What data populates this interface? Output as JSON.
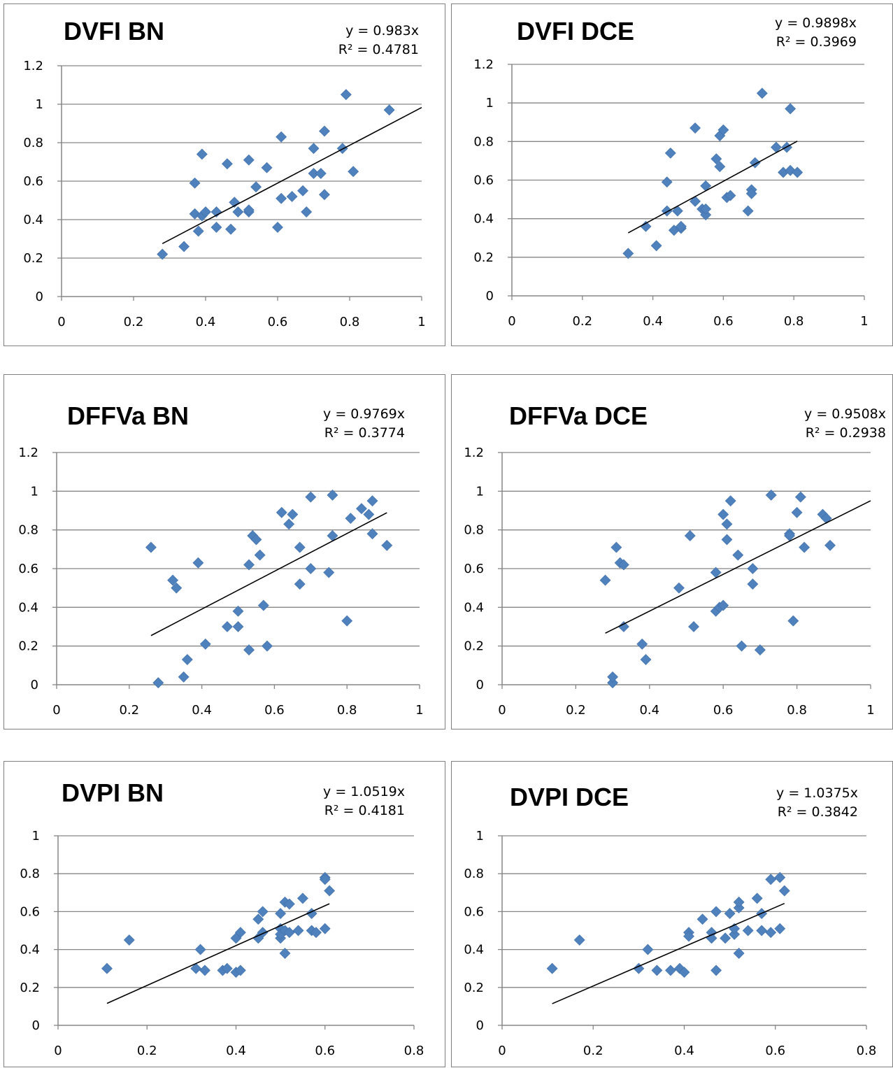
{
  "chart_data": [
    {
      "type": "scatter",
      "title": "DVFI BN",
      "trendline": {
        "equation": "y = 0.983x",
        "r2": "R² = 0.4781",
        "slope": 0.983,
        "x_range": [
          0.28,
          1.0
        ]
      },
      "xlim": [
        0,
        1
      ],
      "ylim": [
        0,
        1.2
      ],
      "xticks": [
        "0",
        "0.2",
        "0.4",
        "0.6",
        "0.8",
        "1"
      ],
      "yticks": [
        "0",
        "0.2",
        "0.4",
        "0.6",
        "0.8",
        "1",
        "1.2"
      ],
      "xtick_values": [
        0,
        0.2,
        0.4,
        0.6,
        0.8,
        1
      ],
      "ytick_values": [
        0,
        0.2,
        0.4,
        0.6,
        0.8,
        1,
        1.2
      ],
      "grid": "horizontal",
      "marker_color": "#4F81BD",
      "points": [
        [
          0.28,
          0.22
        ],
        [
          0.34,
          0.26
        ],
        [
          0.37,
          0.43
        ],
        [
          0.37,
          0.59
        ],
        [
          0.38,
          0.34
        ],
        [
          0.39,
          0.42
        ],
        [
          0.39,
          0.74
        ],
        [
          0.4,
          0.44
        ],
        [
          0.43,
          0.36
        ],
        [
          0.43,
          0.44
        ],
        [
          0.46,
          0.69
        ],
        [
          0.47,
          0.35
        ],
        [
          0.48,
          0.49
        ],
        [
          0.49,
          0.44
        ],
        [
          0.52,
          0.71
        ],
        [
          0.52,
          0.44
        ],
        [
          0.52,
          0.45
        ],
        [
          0.54,
          0.57
        ],
        [
          0.57,
          0.67
        ],
        [
          0.6,
          0.36
        ],
        [
          0.61,
          0.51
        ],
        [
          0.61,
          0.83
        ],
        [
          0.64,
          0.52
        ],
        [
          0.67,
          0.55
        ],
        [
          0.68,
          0.44
        ],
        [
          0.7,
          0.77
        ],
        [
          0.7,
          0.64
        ],
        [
          0.72,
          0.64
        ],
        [
          0.73,
          0.53
        ],
        [
          0.73,
          0.86
        ],
        [
          0.78,
          0.77
        ],
        [
          0.79,
          1.05
        ],
        [
          0.81,
          0.65
        ],
        [
          0.91,
          0.97
        ]
      ]
    },
    {
      "type": "scatter",
      "title": "DVFI DCE",
      "trendline": {
        "equation": "y = 0.9898x",
        "r2": "R² = 0.3969",
        "slope": 0.9898,
        "x_range": [
          0.33,
          0.81
        ]
      },
      "xlim": [
        0,
        1
      ],
      "ylim": [
        0,
        1.2
      ],
      "xticks": [
        "0",
        "0.2",
        "0.4",
        "0.6",
        "0.8",
        "1"
      ],
      "yticks": [
        "0",
        "0.2",
        "0.4",
        "0.6",
        "0.8",
        "1",
        "1.2"
      ],
      "xtick_values": [
        0,
        0.2,
        0.4,
        0.6,
        0.8,
        1
      ],
      "ytick_values": [
        0,
        0.2,
        0.4,
        0.6,
        0.8,
        1,
        1.2
      ],
      "grid": "horizontal",
      "marker_color": "#4F81BD",
      "points": [
        [
          0.33,
          0.22
        ],
        [
          0.38,
          0.36
        ],
        [
          0.41,
          0.26
        ],
        [
          0.44,
          0.59
        ],
        [
          0.44,
          0.44
        ],
        [
          0.45,
          0.74
        ],
        [
          0.46,
          0.34
        ],
        [
          0.47,
          0.44
        ],
        [
          0.48,
          0.35
        ],
        [
          0.48,
          0.36
        ],
        [
          0.52,
          0.49
        ],
        [
          0.52,
          0.87
        ],
        [
          0.54,
          0.45
        ],
        [
          0.55,
          0.42
        ],
        [
          0.55,
          0.57
        ],
        [
          0.55,
          0.45
        ],
        [
          0.58,
          0.71
        ],
        [
          0.59,
          0.67
        ],
        [
          0.59,
          0.83
        ],
        [
          0.6,
          0.86
        ],
        [
          0.61,
          0.51
        ],
        [
          0.62,
          0.52
        ],
        [
          0.67,
          0.44
        ],
        [
          0.68,
          0.55
        ],
        [
          0.68,
          0.53
        ],
        [
          0.69,
          0.69
        ],
        [
          0.71,
          1.05
        ],
        [
          0.75,
          0.77
        ],
        [
          0.77,
          0.64
        ],
        [
          0.78,
          0.77
        ],
        [
          0.79,
          0.65
        ],
        [
          0.79,
          0.97
        ],
        [
          0.81,
          0.64
        ]
      ]
    },
    {
      "type": "scatter",
      "title": "DFFVa BN",
      "trendline": {
        "equation": "y = 0.9769x",
        "r2": "R² = 0.3774",
        "slope": 0.9769,
        "x_range": [
          0.26,
          0.91
        ]
      },
      "xlim": [
        0,
        1
      ],
      "ylim": [
        0,
        1.2
      ],
      "xticks": [
        "0",
        "0.2",
        "0.4",
        "0.6",
        "0.8",
        "1"
      ],
      "yticks": [
        "0",
        "0.2",
        "0.4",
        "0.6",
        "0.8",
        "1",
        "1.2"
      ],
      "xtick_values": [
        0,
        0.2,
        0.4,
        0.6,
        0.8,
        1
      ],
      "ytick_values": [
        0,
        0.2,
        0.4,
        0.6,
        0.8,
        1,
        1.2
      ],
      "grid": "horizontal",
      "marker_color": "#4F81BD",
      "points": [
        [
          0.26,
          0.71
        ],
        [
          0.28,
          0.01
        ],
        [
          0.32,
          0.54
        ],
        [
          0.33,
          0.5
        ],
        [
          0.35,
          0.04
        ],
        [
          0.36,
          0.13
        ],
        [
          0.39,
          0.63
        ],
        [
          0.41,
          0.21
        ],
        [
          0.47,
          0.3
        ],
        [
          0.5,
          0.3
        ],
        [
          0.5,
          0.38
        ],
        [
          0.53,
          0.62
        ],
        [
          0.53,
          0.18
        ],
        [
          0.54,
          0.77
        ],
        [
          0.55,
          0.75
        ],
        [
          0.56,
          0.67
        ],
        [
          0.57,
          0.41
        ],
        [
          0.58,
          0.2
        ],
        [
          0.62,
          0.89
        ],
        [
          0.64,
          0.83
        ],
        [
          0.65,
          0.88
        ],
        [
          0.67,
          0.71
        ],
        [
          0.67,
          0.52
        ],
        [
          0.7,
          0.97
        ],
        [
          0.7,
          0.6
        ],
        [
          0.75,
          0.58
        ],
        [
          0.76,
          0.98
        ],
        [
          0.76,
          0.77
        ],
        [
          0.8,
          0.33
        ],
        [
          0.81,
          0.86
        ],
        [
          0.84,
          0.91
        ],
        [
          0.86,
          0.88
        ],
        [
          0.87,
          0.78
        ],
        [
          0.87,
          0.95
        ],
        [
          0.91,
          0.72
        ]
      ]
    },
    {
      "type": "scatter",
      "title": "DFFVa DCE",
      "trendline": {
        "equation": "y = 0.9508x",
        "r2": "R² = 0.2938",
        "slope": 0.9508,
        "x_range": [
          0.28,
          1.0
        ]
      },
      "xlim": [
        0,
        1
      ],
      "ylim": [
        0,
        1.2
      ],
      "xticks": [
        "0",
        "0.2",
        "0.4",
        "0.6",
        "0.8",
        "1"
      ],
      "yticks": [
        "0",
        "0.2",
        "0.4",
        "0.6",
        "0.8",
        "1",
        "1.2"
      ],
      "xtick_values": [
        0,
        0.2,
        0.4,
        0.6,
        0.8,
        1
      ],
      "ytick_values": [
        0,
        0.2,
        0.4,
        0.6,
        0.8,
        1,
        1.2
      ],
      "grid": "horizontal",
      "marker_color": "#4F81BD",
      "points": [
        [
          0.28,
          0.54
        ],
        [
          0.3,
          0.01
        ],
        [
          0.3,
          0.04
        ],
        [
          0.31,
          0.71
        ],
        [
          0.32,
          0.63
        ],
        [
          0.33,
          0.62
        ],
        [
          0.33,
          0.3
        ],
        [
          0.38,
          0.21
        ],
        [
          0.39,
          0.13
        ],
        [
          0.48,
          0.5
        ],
        [
          0.51,
          0.77
        ],
        [
          0.52,
          0.3
        ],
        [
          0.58,
          0.58
        ],
        [
          0.58,
          0.38
        ],
        [
          0.59,
          0.4
        ],
        [
          0.6,
          0.41
        ],
        [
          0.6,
          0.88
        ],
        [
          0.61,
          0.83
        ],
        [
          0.61,
          0.75
        ],
        [
          0.62,
          0.95
        ],
        [
          0.64,
          0.67
        ],
        [
          0.65,
          0.2
        ],
        [
          0.68,
          0.6
        ],
        [
          0.68,
          0.52
        ],
        [
          0.7,
          0.18
        ],
        [
          0.73,
          0.98
        ],
        [
          0.78,
          0.78
        ],
        [
          0.78,
          0.77
        ],
        [
          0.79,
          0.33
        ],
        [
          0.8,
          0.89
        ],
        [
          0.81,
          0.97
        ],
        [
          0.82,
          0.71
        ],
        [
          0.87,
          0.88
        ],
        [
          0.88,
          0.86
        ],
        [
          0.89,
          0.72
        ]
      ]
    },
    {
      "type": "scatter",
      "title": "DVPI BN",
      "trendline": {
        "equation": "y = 1.0519x",
        "r2": "R² = 0.4181",
        "slope": 1.0519,
        "x_range": [
          0.11,
          0.61
        ]
      },
      "xlim": [
        0,
        0.8
      ],
      "ylim": [
        0,
        1
      ],
      "xticks": [
        "0",
        "0.2",
        "0.4",
        "0.6",
        "0.8"
      ],
      "yticks": [
        "0",
        "0.2",
        "0.4",
        "0.6",
        "0.8",
        "1"
      ],
      "xtick_values": [
        0,
        0.2,
        0.4,
        0.6,
        0.8
      ],
      "ytick_values": [
        0,
        0.2,
        0.4,
        0.6,
        0.8,
        1
      ],
      "grid": "horizontal",
      "marker_color": "#4F81BD",
      "points": [
        [
          0.11,
          0.3
        ],
        [
          0.16,
          0.45
        ],
        [
          0.31,
          0.3
        ],
        [
          0.32,
          0.4
        ],
        [
          0.33,
          0.29
        ],
        [
          0.37,
          0.29
        ],
        [
          0.38,
          0.3
        ],
        [
          0.4,
          0.28
        ],
        [
          0.4,
          0.46
        ],
        [
          0.41,
          0.29
        ],
        [
          0.41,
          0.49
        ],
        [
          0.45,
          0.46
        ],
        [
          0.45,
          0.56
        ],
        [
          0.46,
          0.6
        ],
        [
          0.46,
          0.49
        ],
        [
          0.5,
          0.46
        ],
        [
          0.5,
          0.51
        ],
        [
          0.5,
          0.59
        ],
        [
          0.5,
          0.48
        ],
        [
          0.51,
          0.65
        ],
        [
          0.51,
          0.5
        ],
        [
          0.51,
          0.38
        ],
        [
          0.52,
          0.64
        ],
        [
          0.52,
          0.49
        ],
        [
          0.54,
          0.5
        ],
        [
          0.55,
          0.67
        ],
        [
          0.57,
          0.59
        ],
        [
          0.57,
          0.5
        ],
        [
          0.58,
          0.49
        ],
        [
          0.6,
          0.51
        ],
        [
          0.6,
          0.78
        ],
        [
          0.6,
          0.77
        ],
        [
          0.61,
          0.71
        ]
      ]
    },
    {
      "type": "scatter",
      "title": "DVPI DCE",
      "trendline": {
        "equation": "y = 1.0375x",
        "r2": "R² = 0.3842",
        "slope": 1.0375,
        "x_range": [
          0.11,
          0.62
        ]
      },
      "xlim": [
        0,
        0.8
      ],
      "ylim": [
        0,
        1
      ],
      "xticks": [
        "0",
        "0.2",
        "0.4",
        "0.6",
        "0.8"
      ],
      "yticks": [
        "0",
        "0.2",
        "0.4",
        "0.6",
        "0.8",
        "1"
      ],
      "xtick_values": [
        0,
        0.2,
        0.4,
        0.6,
        0.8
      ],
      "ytick_values": [
        0,
        0.2,
        0.4,
        0.6,
        0.8,
        1
      ],
      "grid": "horizontal",
      "marker_color": "#4F81BD",
      "points": [
        [
          0.11,
          0.3
        ],
        [
          0.17,
          0.45
        ],
        [
          0.3,
          0.3
        ],
        [
          0.32,
          0.4
        ],
        [
          0.34,
          0.29
        ],
        [
          0.37,
          0.29
        ],
        [
          0.39,
          0.3
        ],
        [
          0.4,
          0.28
        ],
        [
          0.41,
          0.49
        ],
        [
          0.41,
          0.47
        ],
        [
          0.44,
          0.56
        ],
        [
          0.46,
          0.49
        ],
        [
          0.46,
          0.46
        ],
        [
          0.47,
          0.6
        ],
        [
          0.47,
          0.29
        ],
        [
          0.49,
          0.46
        ],
        [
          0.5,
          0.59
        ],
        [
          0.51,
          0.48
        ],
        [
          0.51,
          0.51
        ],
        [
          0.52,
          0.62
        ],
        [
          0.52,
          0.65
        ],
        [
          0.52,
          0.38
        ],
        [
          0.54,
          0.5
        ],
        [
          0.56,
          0.67
        ],
        [
          0.57,
          0.5
        ],
        [
          0.57,
          0.59
        ],
        [
          0.59,
          0.77
        ],
        [
          0.59,
          0.49
        ],
        [
          0.61,
          0.51
        ],
        [
          0.61,
          0.78
        ],
        [
          0.62,
          0.71
        ]
      ]
    }
  ]
}
